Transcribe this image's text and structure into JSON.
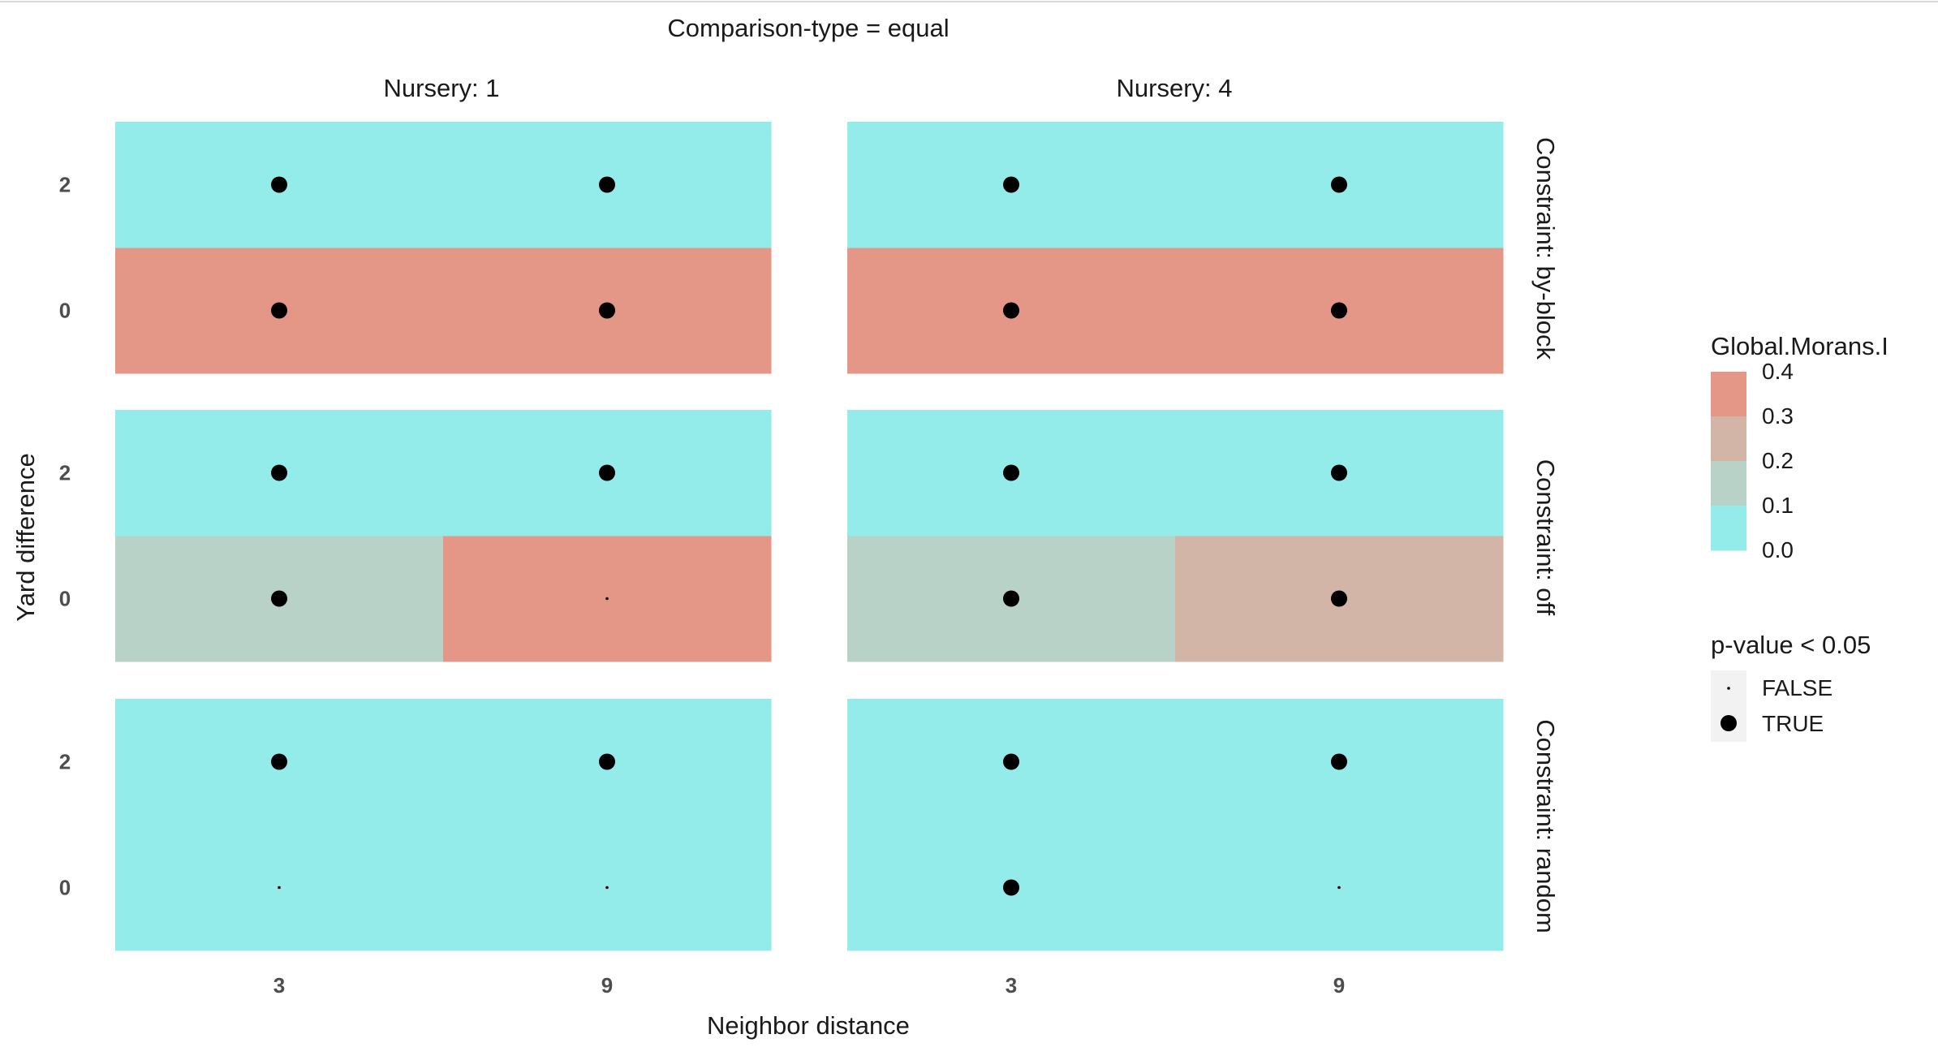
{
  "chart_data": {
    "type": "heatmap",
    "title": "Comparison-type = equal",
    "xlabel": "Neighbor distance",
    "ylabel": "Yard difference",
    "x_ticks": [
      "3",
      "9"
    ],
    "y_ticks": [
      "0",
      "2"
    ],
    "col_facets": [
      "Nursery: 1",
      "Nursery: 4"
    ],
    "row_facets": [
      "Constraint: by-block",
      "Constraint: off",
      "Constraint: random"
    ],
    "fill_legend": {
      "title": "Global.Morans.I",
      "labels": [
        "0.4",
        "0.3",
        "0.2",
        "0.1",
        "0.0"
      ],
      "colors": [
        "#e49787",
        "#d2b5a6",
        "#b9d2c8",
        "#93ecea"
      ]
    },
    "size_legend": {
      "title": "p-value < 0.05",
      "labels": [
        "FALSE",
        "TRUE"
      ]
    },
    "cells": [
      {
        "row": 0,
        "col": 0,
        "x": "3",
        "y": "0",
        "moran": 0.35,
        "significant": true
      },
      {
        "row": 0,
        "col": 0,
        "x": "9",
        "y": "0",
        "moran": 0.35,
        "significant": true
      },
      {
        "row": 0,
        "col": 0,
        "x": "3",
        "y": "2",
        "moran": 0.05,
        "significant": true
      },
      {
        "row": 0,
        "col": 0,
        "x": "9",
        "y": "2",
        "moran": 0.05,
        "significant": true
      },
      {
        "row": 0,
        "col": 1,
        "x": "3",
        "y": "0",
        "moran": 0.35,
        "significant": true
      },
      {
        "row": 0,
        "col": 1,
        "x": "9",
        "y": "0",
        "moran": 0.35,
        "significant": true
      },
      {
        "row": 0,
        "col": 1,
        "x": "3",
        "y": "2",
        "moran": 0.05,
        "significant": true
      },
      {
        "row": 0,
        "col": 1,
        "x": "9",
        "y": "2",
        "moran": 0.05,
        "significant": true
      },
      {
        "row": 1,
        "col": 0,
        "x": "3",
        "y": "0",
        "moran": 0.15,
        "significant": true
      },
      {
        "row": 1,
        "col": 0,
        "x": "9",
        "y": "0",
        "moran": 0.35,
        "significant": false
      },
      {
        "row": 1,
        "col": 0,
        "x": "3",
        "y": "2",
        "moran": 0.05,
        "significant": true
      },
      {
        "row": 1,
        "col": 0,
        "x": "9",
        "y": "2",
        "moran": 0.05,
        "significant": true
      },
      {
        "row": 1,
        "col": 1,
        "x": "3",
        "y": "0",
        "moran": 0.15,
        "significant": true
      },
      {
        "row": 1,
        "col": 1,
        "x": "9",
        "y": "0",
        "moran": 0.25,
        "significant": true
      },
      {
        "row": 1,
        "col": 1,
        "x": "3",
        "y": "2",
        "moran": 0.05,
        "significant": true
      },
      {
        "row": 1,
        "col": 1,
        "x": "9",
        "y": "2",
        "moran": 0.05,
        "significant": true
      },
      {
        "row": 2,
        "col": 0,
        "x": "3",
        "y": "0",
        "moran": 0.05,
        "significant": false
      },
      {
        "row": 2,
        "col": 0,
        "x": "9",
        "y": "0",
        "moran": 0.05,
        "significant": false
      },
      {
        "row": 2,
        "col": 0,
        "x": "3",
        "y": "2",
        "moran": 0.05,
        "significant": true
      },
      {
        "row": 2,
        "col": 0,
        "x": "9",
        "y": "2",
        "moran": 0.05,
        "significant": true
      },
      {
        "row": 2,
        "col": 1,
        "x": "3",
        "y": "0",
        "moran": 0.05,
        "significant": true
      },
      {
        "row": 2,
        "col": 1,
        "x": "9",
        "y": "0",
        "moran": 0.05,
        "significant": false
      },
      {
        "row": 2,
        "col": 1,
        "x": "3",
        "y": "2",
        "moran": 0.05,
        "significant": true
      },
      {
        "row": 2,
        "col": 1,
        "x": "9",
        "y": "2",
        "moran": 0.05,
        "significant": true
      }
    ]
  }
}
